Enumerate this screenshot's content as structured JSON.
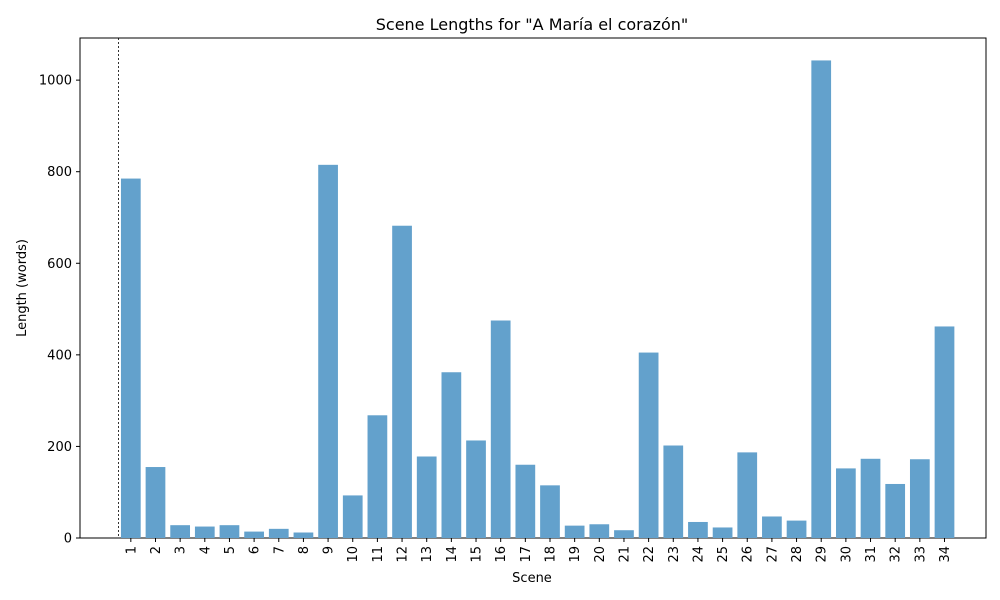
{
  "chart_data": {
    "type": "bar",
    "title": "Scene Lengths for \"A María el corazón\"",
    "xlabel": "Scene",
    "ylabel": "Length (words)",
    "categories": [
      "1",
      "2",
      "3",
      "4",
      "5",
      "6",
      "7",
      "8",
      "9",
      "10",
      "11",
      "12",
      "13",
      "14",
      "15",
      "16",
      "17",
      "18",
      "19",
      "20",
      "21",
      "22",
      "23",
      "24",
      "25",
      "26",
      "27",
      "28",
      "29",
      "30",
      "31",
      "32",
      "33",
      "34"
    ],
    "values": [
      785,
      155,
      28,
      25,
      28,
      14,
      20,
      12,
      815,
      93,
      268,
      682,
      178,
      362,
      213,
      475,
      160,
      115,
      27,
      30,
      17,
      405,
      202,
      35,
      23,
      187,
      47,
      38,
      1043,
      152,
      173,
      118,
      172,
      462
    ],
    "ylim": [
      0,
      1092
    ],
    "yticks": [
      0,
      200,
      400,
      600,
      800,
      1000
    ],
    "bar_color": "#63a1cc",
    "grid": false,
    "legend": "none",
    "reference_line": {
      "x_position_before_category": "1",
      "style": "dashed",
      "color": "#000000"
    }
  }
}
